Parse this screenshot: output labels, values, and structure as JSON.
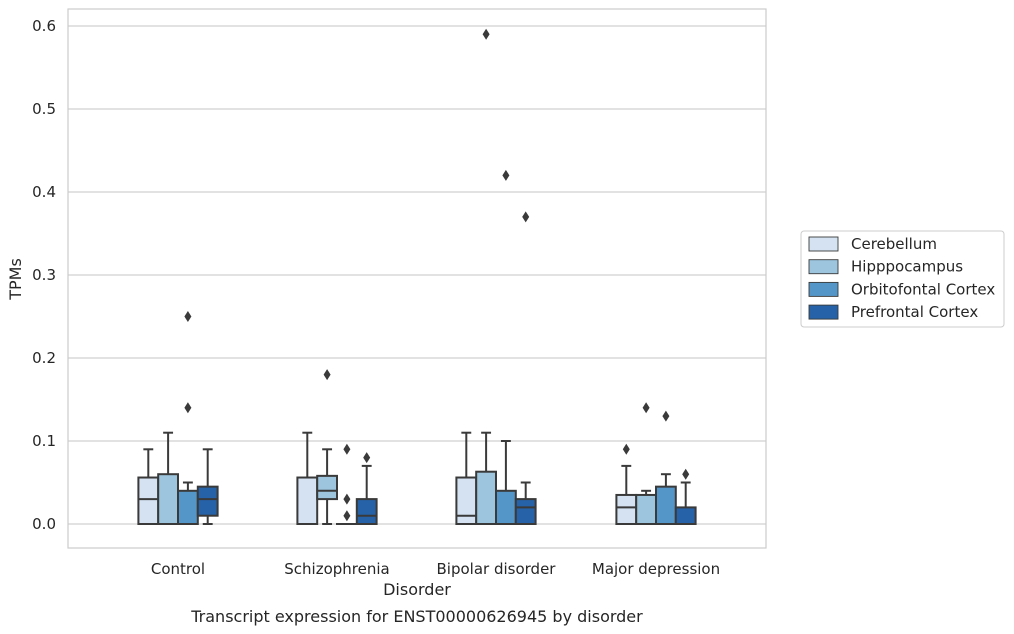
{
  "caption": "Transcript expression for ENST00000626945 by disorder",
  "chart_data": {
    "type": "box",
    "title": "",
    "xlabel": "Disorder",
    "ylabel": "TPMs",
    "ylim": [
      -0.028,
      0.62
    ],
    "yticks": [
      "0.0",
      "0.1",
      "0.2",
      "0.3",
      "0.4",
      "0.5",
      "0.6"
    ],
    "grid": "horizontal",
    "legend_position": "right",
    "categories": [
      "Control",
      "Schizophrenia",
      "Bipolar disorder",
      "Major depression"
    ],
    "series": [
      {
        "name": "Cerebellum",
        "color": "#d4e2f1",
        "boxes": [
          {
            "whisker_low": 0.0,
            "q1": 0.0,
            "median": 0.03,
            "q3": 0.056,
            "whisker_high": 0.09,
            "outliers": []
          },
          {
            "whisker_low": 0.0,
            "q1": 0.0,
            "median": 0.0,
            "q3": 0.056,
            "whisker_high": 0.11,
            "outliers": []
          },
          {
            "whisker_low": 0.0,
            "q1": 0.0,
            "median": 0.01,
            "q3": 0.056,
            "whisker_high": 0.11,
            "outliers": []
          },
          {
            "whisker_low": 0.0,
            "q1": 0.0,
            "median": 0.02,
            "q3": 0.035,
            "whisker_high": 0.07,
            "outliers": [
              0.09
            ]
          }
        ]
      },
      {
        "name": "Hipppocampus",
        "color": "#9dc5de",
        "boxes": [
          {
            "whisker_low": 0.0,
            "q1": 0.0,
            "median": 0.0,
            "q3": 0.06,
            "whisker_high": 0.11,
            "outliers": []
          },
          {
            "whisker_low": 0.0,
            "q1": 0.03,
            "median": 0.04,
            "q3": 0.058,
            "whisker_high": 0.09,
            "outliers": [
              0.18
            ]
          },
          {
            "whisker_low": 0.0,
            "q1": 0.0,
            "median": 0.0,
            "q3": 0.063,
            "whisker_high": 0.11,
            "outliers": [
              0.59
            ]
          },
          {
            "whisker_low": 0.0,
            "q1": 0.0,
            "median": 0.0,
            "q3": 0.035,
            "whisker_high": 0.04,
            "outliers": [
              0.14
            ]
          }
        ]
      },
      {
        "name": "Orbitofontal Cortex",
        "color": "#5596c8",
        "boxes": [
          {
            "whisker_low": 0.0,
            "q1": 0.0,
            "median": 0.0,
            "q3": 0.04,
            "whisker_high": 0.05,
            "outliers": [
              0.14,
              0.25
            ]
          },
          {
            "whisker_low": 0.0,
            "q1": 0.0,
            "median": 0.0,
            "q3": 0.0,
            "whisker_high": 0.0,
            "outliers": [
              0.01,
              0.03,
              0.09
            ]
          },
          {
            "whisker_low": 0.0,
            "q1": 0.0,
            "median": 0.0,
            "q3": 0.04,
            "whisker_high": 0.1,
            "outliers": [
              0.42
            ]
          },
          {
            "whisker_low": 0.0,
            "q1": 0.0,
            "median": 0.0,
            "q3": 0.045,
            "whisker_high": 0.06,
            "outliers": [
              0.13
            ]
          }
        ]
      },
      {
        "name": "Prefrontal Cortex",
        "color": "#2662a8",
        "boxes": [
          {
            "whisker_low": 0.0,
            "q1": 0.01,
            "median": 0.03,
            "q3": 0.045,
            "whisker_high": 0.09,
            "outliers": []
          },
          {
            "whisker_low": 0.0,
            "q1": 0.0,
            "median": 0.01,
            "q3": 0.03,
            "whisker_high": 0.07,
            "outliers": [
              0.08
            ]
          },
          {
            "whisker_low": 0.0,
            "q1": 0.0,
            "median": 0.02,
            "q3": 0.03,
            "whisker_high": 0.05,
            "outliers": [
              0.37
            ]
          },
          {
            "whisker_low": 0.0,
            "q1": 0.0,
            "median": 0.0,
            "q3": 0.02,
            "whisker_high": 0.05,
            "outliers": [
              0.06
            ]
          }
        ]
      }
    ]
  }
}
